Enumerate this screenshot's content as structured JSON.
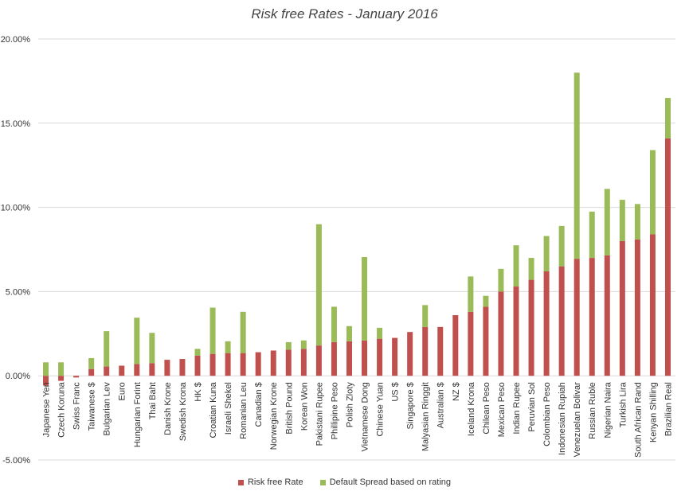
{
  "chart_data": {
    "type": "bar",
    "stacked": true,
    "title": "Risk free Rates - January 2016",
    "xlabel": "",
    "ylabel": "",
    "ylim": [
      -5,
      20
    ],
    "yticks": [
      -5,
      0,
      5,
      10,
      15,
      20
    ],
    "ytick_format": "percent_2dp",
    "grid": true,
    "legend_position": "bottom",
    "categories": [
      "Japanese Yen",
      "Czech Koruna",
      "Swiss Franc",
      "Taiwanese $",
      "Bulgarian Lev",
      "Euro",
      "Hungarian Forint",
      "Thai Baht",
      "Danish Krone",
      "Swedish Krona",
      "HK $",
      "Croatian Kuna",
      "Israeli Shekel",
      "Romanian Leu",
      "Canadian $",
      "Norwegian Krone",
      "British Pound",
      "Korean Won",
      "Pakistani Rupee",
      "Phillipine Peso",
      "Polish Zloty",
      "Vietnamese Dong",
      "Chinese Yuan",
      "US $",
      "Singapore $",
      "Malyasian Ringgit",
      "Australian $",
      "NZ $",
      "Iceland Krona",
      "Chilean Peso",
      "Mexican Peso",
      "Indian Rupee",
      "Peruvian Sol",
      "Colombian Peso",
      "Indonesian Rupiah",
      "Venezuelan Bolivar",
      "Russian Ruble",
      "Nigerian Naira",
      "Turkish Lira",
      "South African Rand",
      "Kenyan Shilling",
      "Brazilian Real"
    ],
    "series": [
      {
        "name": "Risk free Rate",
        "color": "#c0504d",
        "values": [
          -0.58,
          -0.3,
          -0.1,
          0.4,
          0.55,
          0.6,
          0.7,
          0.75,
          0.95,
          1.0,
          1.2,
          1.3,
          1.35,
          1.35,
          1.4,
          1.5,
          1.55,
          1.6,
          1.8,
          2.0,
          2.05,
          2.1,
          2.2,
          2.25,
          2.6,
          2.9,
          2.9,
          3.6,
          3.8,
          4.1,
          5.0,
          5.3,
          5.7,
          6.2,
          6.5,
          6.95,
          7.0,
          7.15,
          8.0,
          8.1,
          8.4,
          14.1
        ]
      },
      {
        "name": "Default Spread based on rating",
        "color": "#9bbb59",
        "values": [
          0.8,
          0.8,
          0.0,
          0.65,
          2.1,
          0.0,
          2.75,
          1.8,
          0.0,
          0.0,
          0.4,
          2.75,
          0.7,
          2.45,
          0.0,
          0.0,
          0.45,
          0.5,
          7.2,
          2.1,
          0.9,
          4.95,
          0.65,
          0.0,
          0.0,
          1.3,
          0.0,
          0.0,
          2.1,
          0.65,
          1.35,
          2.45,
          1.3,
          2.1,
          2.4,
          11.05,
          2.75,
          3.95,
          2.45,
          2.1,
          5.0,
          2.4
        ]
      }
    ]
  }
}
